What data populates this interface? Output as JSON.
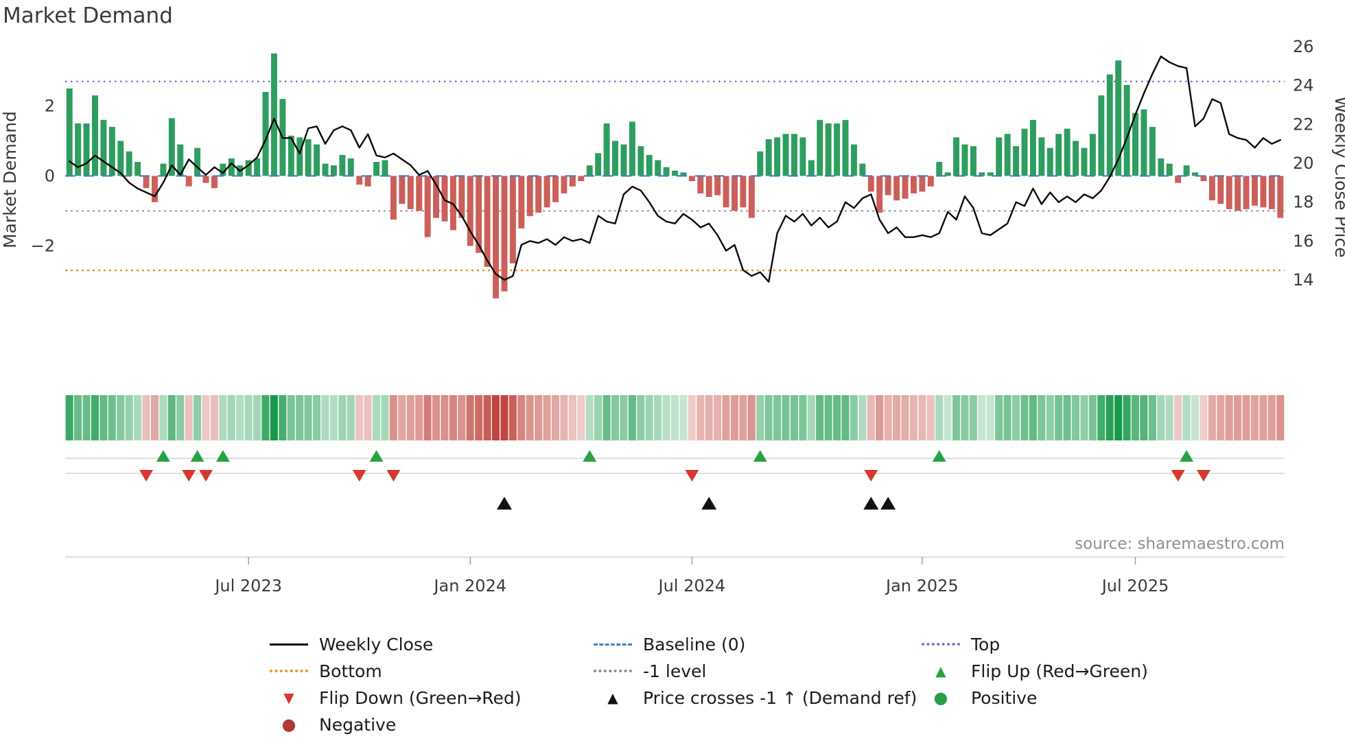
{
  "title": "Market Demand",
  "source": "source: sharemaestro.com",
  "axes": {
    "left_label": "Market Demand",
    "right_label": "Weekly Close Price",
    "left_ticks": [
      {
        "label": "2",
        "value": 2
      },
      {
        "label": "0",
        "value": 0
      },
      {
        "label": "−2",
        "value": -2
      }
    ],
    "right_ticks": [
      26,
      24,
      22,
      20,
      18,
      16,
      14
    ],
    "x_ticks": [
      {
        "label": "Jul 2023",
        "week": 21
      },
      {
        "label": "Jan 2024",
        "week": 47
      },
      {
        "label": "Jul 2024",
        "week": 73
      },
      {
        "label": "Jan 2025",
        "week": 100
      },
      {
        "label": "Jul 2025",
        "week": 125
      }
    ]
  },
  "colors": {
    "positive_bar": "#2e9d60",
    "negative_bar": "#cb5f5a",
    "price_line": "#0a0a0a",
    "baseline_line": "#3f7fbf",
    "top_line": "#7372c9",
    "bottom_line": "#e8942d",
    "minus_one_line": "#8b8b94",
    "flip_up": "#27a344",
    "flip_down": "#d6382f",
    "price_cross": "#111111",
    "positive_dot": "#2a9d45",
    "negative_dot": "#ad3a36",
    "heat_positive": "#17994a",
    "heat_negative": "#c0463f",
    "gridline": "#c9c9c9"
  },
  "icons": {
    "triangle_up": "▲",
    "triangle_down": "▼",
    "circle": "●"
  },
  "chart_data": {
    "type": "combo: bar (Market Demand, left axis) + line (Weekly Close, right axis) + heatmap strip + event marker rows",
    "x_unit": "weeks",
    "x_description": "143 weekly observations, approx Feb 2023 to Nov 2025",
    "demand_ylim": [
      -3.9,
      3.9
    ],
    "price_ylim": [
      13.2,
      26.3
    ],
    "grid": "off",
    "legend_position": "below chart, 3 columns",
    "levels": {
      "baseline": 0,
      "top": 2.7,
      "bottom": -2.7,
      "minus_one": -1
    },
    "weekly": {
      "demand": [
        2.5,
        1.5,
        1.5,
        2.3,
        1.6,
        1.4,
        1.0,
        0.7,
        0.4,
        -0.35,
        -0.75,
        0.35,
        1.65,
        0.9,
        -0.3,
        0.8,
        -0.2,
        -0.35,
        0.35,
        0.5,
        0.3,
        0.45,
        0.5,
        2.4,
        3.5,
        2.2,
        1.15,
        1.1,
        1.05,
        0.9,
        0.35,
        0.3,
        0.6,
        0.5,
        -0.25,
        -0.3,
        0.4,
        0.45,
        -1.25,
        -0.8,
        -0.95,
        -1.0,
        -1.75,
        -1.2,
        -1.3,
        -1.55,
        -1.2,
        -2.0,
        -2.2,
        -2.6,
        -3.5,
        -3.3,
        -2.5,
        -1.5,
        -1.15,
        -1.05,
        -0.9,
        -0.75,
        -0.5,
        -0.3,
        -0.15,
        0.3,
        0.65,
        1.5,
        1.0,
        0.9,
        1.55,
        0.85,
        0.6,
        0.45,
        0.25,
        0.15,
        0.1,
        -0.15,
        -0.5,
        -0.6,
        -0.55,
        -0.9,
        -1.0,
        -0.9,
        -1.2,
        0.7,
        1.05,
        1.1,
        1.2,
        1.2,
        1.1,
        0.45,
        1.6,
        1.5,
        1.5,
        1.6,
        0.9,
        0.35,
        -0.45,
        -1.05,
        -0.55,
        -0.7,
        -0.65,
        -0.5,
        -0.45,
        -0.3,
        0.4,
        0.1,
        1.1,
        0.9,
        0.85,
        0.1,
        0.1,
        1.1,
        1.2,
        0.85,
        1.35,
        1.6,
        1.1,
        0.8,
        1.2,
        1.35,
        1.0,
        0.8,
        1.2,
        2.3,
        2.9,
        3.3,
        2.6,
        1.8,
        1.9,
        1.4,
        0.5,
        0.35,
        -0.2,
        0.3,
        0.1,
        -0.15,
        -0.7,
        -0.8,
        -0.95,
        -1.0,
        -0.95,
        -0.85,
        -0.9,
        -0.95,
        -1.2
      ],
      "close": [
        20.1,
        19.8,
        20.0,
        20.4,
        20.1,
        19.8,
        19.5,
        19.0,
        18.7,
        18.5,
        18.3,
        19.0,
        19.9,
        19.4,
        20.2,
        19.8,
        19.4,
        19.8,
        19.5,
        20.0,
        19.6,
        19.9,
        20.3,
        21.2,
        22.3,
        21.3,
        21.3,
        20.5,
        21.8,
        21.9,
        21.0,
        21.7,
        21.9,
        21.7,
        20.8,
        21.5,
        20.4,
        20.3,
        20.5,
        20.2,
        19.9,
        19.4,
        19.6,
        18.9,
        18.1,
        17.9,
        17.3,
        16.5,
        15.8,
        15.0,
        14.3,
        14.0,
        14.2,
        15.8,
        16.0,
        15.9,
        16.1,
        15.8,
        16.2,
        16.0,
        16.1,
        15.9,
        17.3,
        17.0,
        16.9,
        18.4,
        18.8,
        18.6,
        18.0,
        17.3,
        17.0,
        16.9,
        17.4,
        17.1,
        16.7,
        16.9,
        16.3,
        15.5,
        15.8,
        14.5,
        14.2,
        14.4,
        13.9,
        16.4,
        17.3,
        17.0,
        17.4,
        16.8,
        17.2,
        16.7,
        17.0,
        18.0,
        17.7,
        18.2,
        18.4,
        17.1,
        16.4,
        16.7,
        16.2,
        16.2,
        16.3,
        16.2,
        16.4,
        17.5,
        17.1,
        18.3,
        17.7,
        16.4,
        16.3,
        16.6,
        16.9,
        18.0,
        17.8,
        18.7,
        17.9,
        18.5,
        18.0,
        18.3,
        18.0,
        18.4,
        18.2,
        18.6,
        19.3,
        20.2,
        21.3,
        22.5,
        23.6,
        24.6,
        25.5,
        25.2,
        25.0,
        24.9,
        21.9,
        22.3,
        23.3,
        23.1,
        21.5,
        21.3,
        21.2,
        20.8,
        21.3,
        21.0,
        21.2
      ]
    },
    "markers": {
      "flip_up_weeks": [
        11,
        15,
        18,
        36,
        61,
        81,
        102,
        131
      ],
      "flip_down_weeks": [
        9,
        14,
        16,
        34,
        38,
        73,
        94,
        130,
        133
      ],
      "price_cross_weeks": [
        51,
        75,
        94,
        96
      ]
    }
  },
  "legend": {
    "items": [
      {
        "key": "weekly-close",
        "label": "Weekly Close"
      },
      {
        "key": "baseline",
        "label": "Baseline (0)"
      },
      {
        "key": "top",
        "label": "Top"
      },
      {
        "key": "bottom",
        "label": "Bottom"
      },
      {
        "key": "minus-one-level",
        "label": "-1 level"
      },
      {
        "key": "flip-up",
        "label": "Flip Up (Red→Green)"
      },
      {
        "key": "flip-down",
        "label": "Flip Down (Green→Red)"
      },
      {
        "key": "price-cross",
        "label": "Price crosses -1 ↑ (Demand ref)"
      },
      {
        "key": "positive",
        "label": "Positive"
      },
      {
        "key": "negative",
        "label": "Negative"
      }
    ]
  }
}
